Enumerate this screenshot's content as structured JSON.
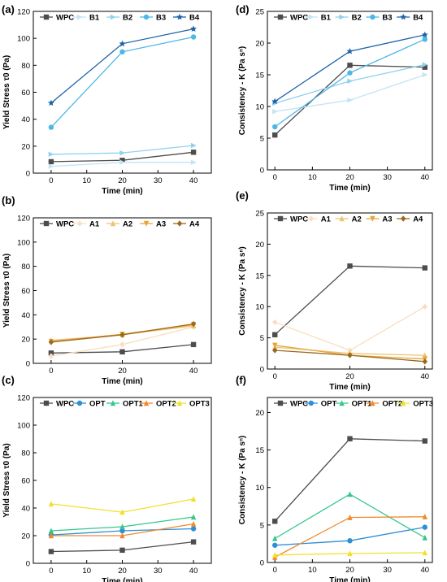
{
  "chart_data": [
    {
      "panel": "(a)",
      "type": "line",
      "x": [
        0,
        20,
        40
      ],
      "xlabel": "Time (min)",
      "ylabel": "Yield Stress τ0 (Pa)",
      "xlim": [
        -5,
        45
      ],
      "ylim": [
        0,
        120
      ],
      "xticks": [
        0,
        10,
        20,
        30,
        40
      ],
      "yticks": [
        0,
        20,
        40,
        60,
        80,
        100,
        120
      ],
      "legend_position": "top",
      "series": [
        {
          "name": "WPC",
          "color": "#4d4d4d",
          "marker": "square",
          "values": [
            8.5,
            9.5,
            15.5
          ]
        },
        {
          "name": "B1",
          "color": "#c3e4f3",
          "marker": "triangle-right",
          "values": [
            5,
            8,
            8
          ]
        },
        {
          "name": "B2",
          "color": "#8fd1ee",
          "marker": "triangle-right",
          "values": [
            14,
            15,
            20.5
          ]
        },
        {
          "name": "B3",
          "color": "#4cb8e6",
          "marker": "circle",
          "values": [
            34,
            90,
            101
          ]
        },
        {
          "name": "B4",
          "color": "#1e63a8",
          "marker": "star",
          "values": [
            52,
            96,
            107
          ]
        }
      ]
    },
    {
      "panel": "(d)",
      "type": "line",
      "x": [
        0,
        20,
        40
      ],
      "xlabel": "Time (min)",
      "ylabel": "Consistency - K (Pa sⁿ)",
      "xlim": [
        -2,
        42
      ],
      "ylim": [
        0,
        25
      ],
      "xticks": [
        0,
        10,
        20,
        30,
        40
      ],
      "yticks": [
        0,
        5,
        10,
        15,
        20,
        25
      ],
      "legend_position": "top",
      "series": [
        {
          "name": "WPC",
          "color": "#4d4d4d",
          "marker": "square",
          "values": [
            5.5,
            16.5,
            16.2
          ]
        },
        {
          "name": "B1",
          "color": "#c3e4f3",
          "marker": "triangle-right",
          "values": [
            9.2,
            11,
            15
          ]
        },
        {
          "name": "B2",
          "color": "#8fd1ee",
          "marker": "triangle-right",
          "values": [
            10.5,
            14,
            16.6
          ]
        },
        {
          "name": "B3",
          "color": "#4cb8e6",
          "marker": "circle",
          "values": [
            6.8,
            15.3,
            20.6
          ]
        },
        {
          "name": "B4",
          "color": "#1e63a8",
          "marker": "star",
          "values": [
            10.8,
            18.7,
            21.3
          ]
        }
      ]
    },
    {
      "panel": "(b)",
      "type": "line",
      "x": [
        0,
        20,
        40
      ],
      "xlabel": "Time (min)",
      "ylabel": "Yield Stress τ0 (Pa)",
      "xlim": [
        -5,
        45
      ],
      "ylim": [
        0,
        120
      ],
      "xticks": [
        0,
        20,
        40
      ],
      "yticks": [
        0,
        20,
        40,
        60,
        80,
        100,
        120
      ],
      "legend_position": "top",
      "series": [
        {
          "name": "WPC",
          "color": "#4d4d4d",
          "marker": "square",
          "values": [
            8.5,
            9.5,
            15.5
          ]
        },
        {
          "name": "A1",
          "color": "#f7dfc0",
          "marker": "diamond",
          "values": [
            6,
            15.5,
            30
          ]
        },
        {
          "name": "A2",
          "color": "#efc276",
          "marker": "triangle-up",
          "values": [
            19,
            23.5,
            31
          ]
        },
        {
          "name": "A3",
          "color": "#e6a43a",
          "marker": "triangle-down",
          "values": [
            18,
            24,
            32
          ]
        },
        {
          "name": "A4",
          "color": "#9a6a1c",
          "marker": "diamond",
          "values": [
            17.5,
            23.5,
            32.5
          ]
        }
      ]
    },
    {
      "panel": "(e)",
      "type": "line",
      "x": [
        0,
        20,
        40
      ],
      "xlabel": "Time (min)",
      "ylabel": "Consistency - K (Pa sⁿ)",
      "xlim": [
        -2,
        42
      ],
      "ylim": [
        0,
        25
      ],
      "xticks": [
        0,
        20,
        40
      ],
      "yticks": [
        0,
        5,
        10,
        15,
        20,
        25
      ],
      "legend_position": "top",
      "series": [
        {
          "name": "WPC",
          "color": "#4d4d4d",
          "marker": "square",
          "values": [
            5.5,
            16.5,
            16.2
          ]
        },
        {
          "name": "A1",
          "color": "#f7dfc0",
          "marker": "diamond",
          "values": [
            7.5,
            3,
            10
          ]
        },
        {
          "name": "A2",
          "color": "#efc276",
          "marker": "triangle-up",
          "values": [
            3.5,
            2.5,
            2.2
          ]
        },
        {
          "name": "A3",
          "color": "#e6a43a",
          "marker": "triangle-down",
          "values": [
            3.8,
            2.2,
            1.6
          ]
        },
        {
          "name": "A4",
          "color": "#9a6a1c",
          "marker": "diamond",
          "values": [
            3,
            2.2,
            1.2
          ]
        }
      ]
    },
    {
      "panel": "(c)",
      "type": "line",
      "x": [
        0,
        20,
        40
      ],
      "xlabel": "Time (min)",
      "ylabel": "Yield Stress τ0 (Pa)",
      "xlim": [
        -5,
        45
      ],
      "ylim": [
        0,
        120
      ],
      "xticks": [
        0,
        10,
        20,
        30,
        40
      ],
      "yticks": [
        0,
        20,
        40,
        60,
        80,
        100,
        120
      ],
      "legend_position": "top",
      "series": [
        {
          "name": "WPC",
          "color": "#4d4d4d",
          "marker": "square",
          "values": [
            8.5,
            9.5,
            15.5
          ]
        },
        {
          "name": "OPT",
          "color": "#2d8fd5",
          "marker": "circle",
          "values": [
            20.5,
            23.5,
            25
          ]
        },
        {
          "name": "OPT1",
          "color": "#35c78a",
          "marker": "triangle-up",
          "values": [
            23.5,
            26.5,
            33.5
          ]
        },
        {
          "name": "OPT2",
          "color": "#f08a2c",
          "marker": "triangle-up",
          "values": [
            20,
            20,
            28.5
          ]
        },
        {
          "name": "OPT3",
          "color": "#f1e02d",
          "marker": "triangle-up",
          "values": [
            43,
            37,
            46.5
          ]
        }
      ]
    },
    {
      "panel": "(f)",
      "type": "line",
      "x": [
        0,
        20,
        40
      ],
      "xlabel": "Time (min)",
      "ylabel": "Consistency - K (Pa sⁿ)",
      "xlim": [
        -2,
        42
      ],
      "ylim": [
        0,
        22
      ],
      "xticks": [
        0,
        10,
        20,
        30,
        40
      ],
      "yticks": [
        0,
        5,
        10,
        15,
        20
      ],
      "legend_position": "top",
      "series": [
        {
          "name": "WPC",
          "color": "#4d4d4d",
          "marker": "square",
          "values": [
            5.5,
            16.5,
            16.2
          ]
        },
        {
          "name": "OPT",
          "color": "#2d8fd5",
          "marker": "circle",
          "values": [
            2.3,
            2.9,
            4.7
          ]
        },
        {
          "name": "OPT1",
          "color": "#35c78a",
          "marker": "triangle-up",
          "values": [
            3.2,
            9.1,
            3.3
          ]
        },
        {
          "name": "OPT2",
          "color": "#f08a2c",
          "marker": "triangle-up",
          "values": [
            0.7,
            6,
            6.1
          ]
        },
        {
          "name": "OPT3",
          "color": "#f1e02d",
          "marker": "triangle-up",
          "values": [
            1,
            1.2,
            1.3
          ]
        }
      ]
    }
  ]
}
